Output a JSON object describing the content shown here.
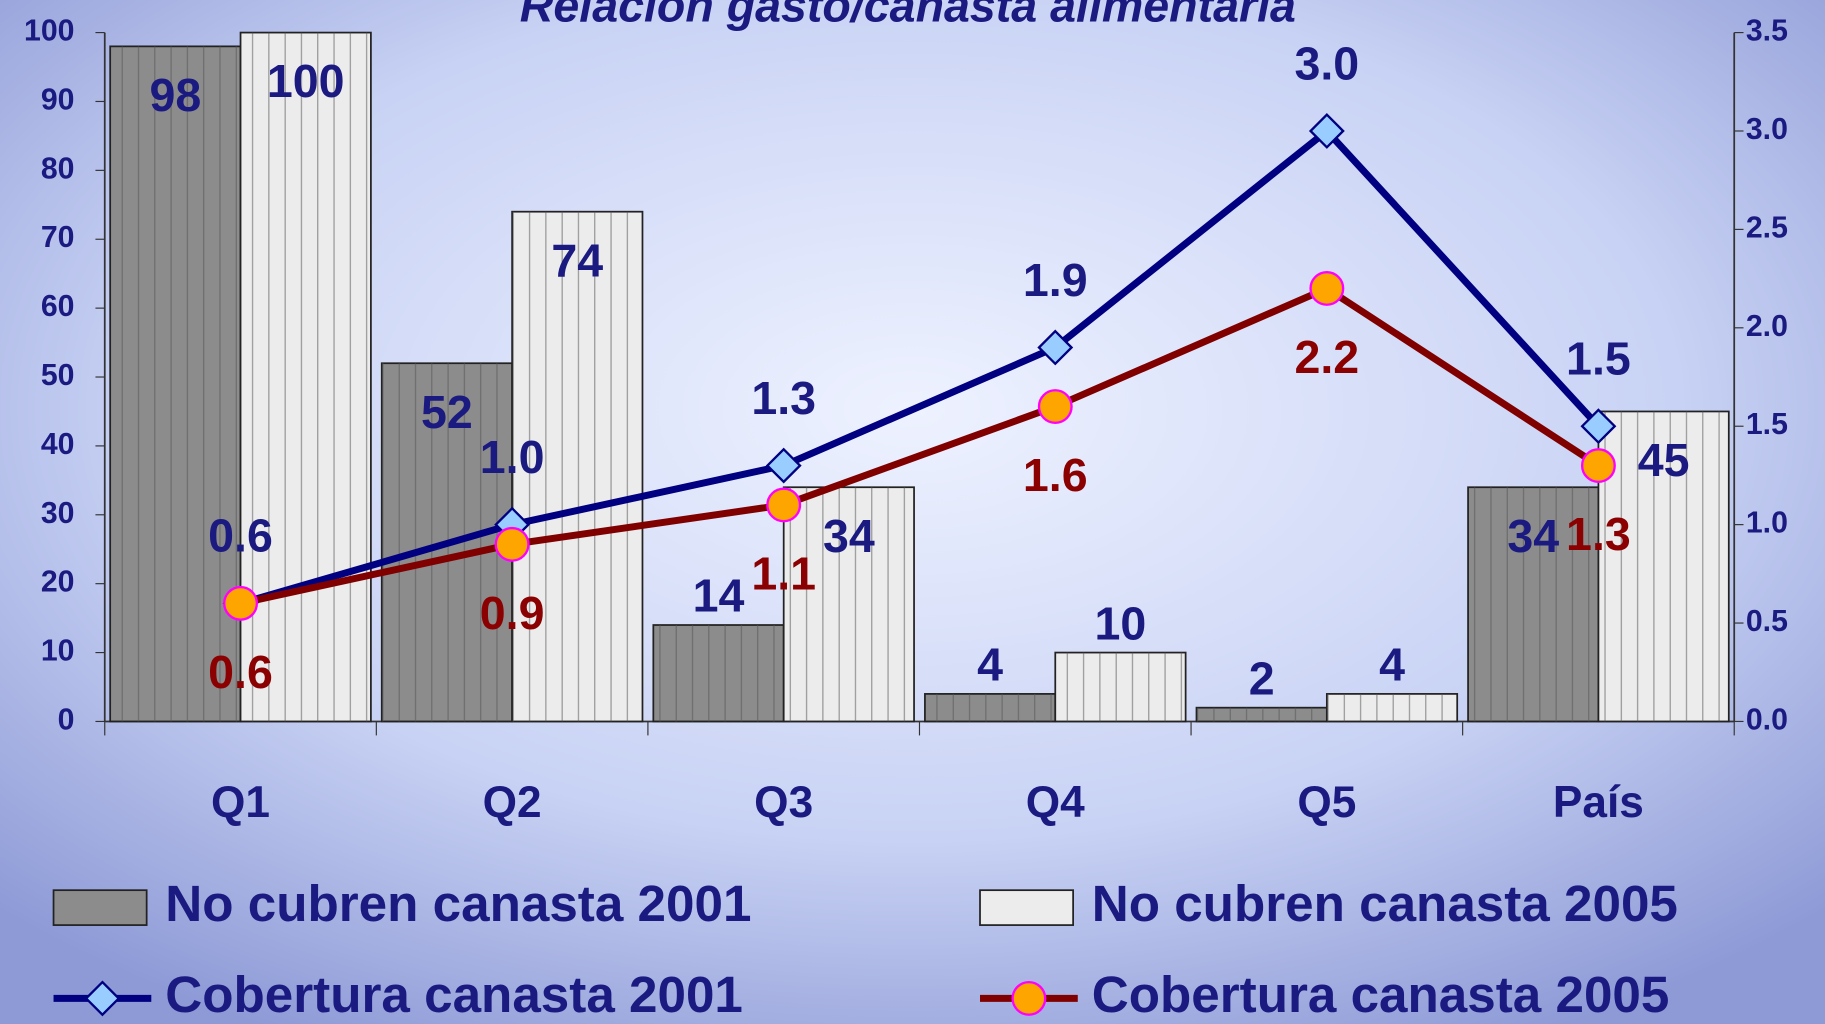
{
  "chart_data": {
    "type": "bar_line",
    "title": "Relación gasto/canasta alimentaria",
    "categories": [
      "Q1",
      "Q2",
      "Q3",
      "Q4",
      "Q5",
      "País"
    ],
    "series": [
      {
        "name": "No cubren canasta 2001",
        "type": "bar",
        "color": "#8c8c8c",
        "values": [
          98,
          52,
          14,
          4,
          2,
          34
        ]
      },
      {
        "name": "No cubren canasta 2005",
        "type": "bar",
        "color": "#ececec",
        "values": [
          100,
          74,
          34,
          10,
          4,
          45
        ]
      },
      {
        "name": "Cobertura canasta 2001",
        "type": "line",
        "axis": "y2",
        "color": "#000080",
        "marker": "diamond",
        "marker_color": "#99ccff",
        "label_color": "#1a1a80",
        "values": [
          0.6,
          1.0,
          1.3,
          1.9,
          3.0,
          1.5
        ],
        "value_labels": [
          "0.6",
          "1.0",
          "1.3",
          "1.9",
          "3.0",
          "1.5"
        ]
      },
      {
        "name": "Cobertura canasta 2005",
        "type": "line",
        "axis": "y2",
        "color": "#800000",
        "marker": "circle",
        "marker_color": "#ffa500",
        "label_color": "#8b0000",
        "values": [
          0.6,
          0.9,
          1.1,
          1.6,
          2.2,
          1.3
        ],
        "value_labels": [
          "0.6",
          "0.9",
          "1.1",
          "1.6",
          "2.2",
          "1.3"
        ]
      }
    ],
    "ylim": [
      0,
      100
    ],
    "yticks": [
      0,
      10,
      20,
      30,
      40,
      50,
      60,
      70,
      80,
      90,
      100
    ],
    "y2lim": [
      0,
      3.5
    ],
    "y2ticks": [
      {
        "value": 0,
        "label": "0.0"
      },
      0.5,
      {
        "value": 1,
        "label": "1.0"
      },
      1.5,
      {
        "value": 2,
        "label": "2.0"
      },
      2.5,
      {
        "value": 3,
        "label": "3.0"
      },
      3.5
    ],
    "legend": "bottom"
  }
}
